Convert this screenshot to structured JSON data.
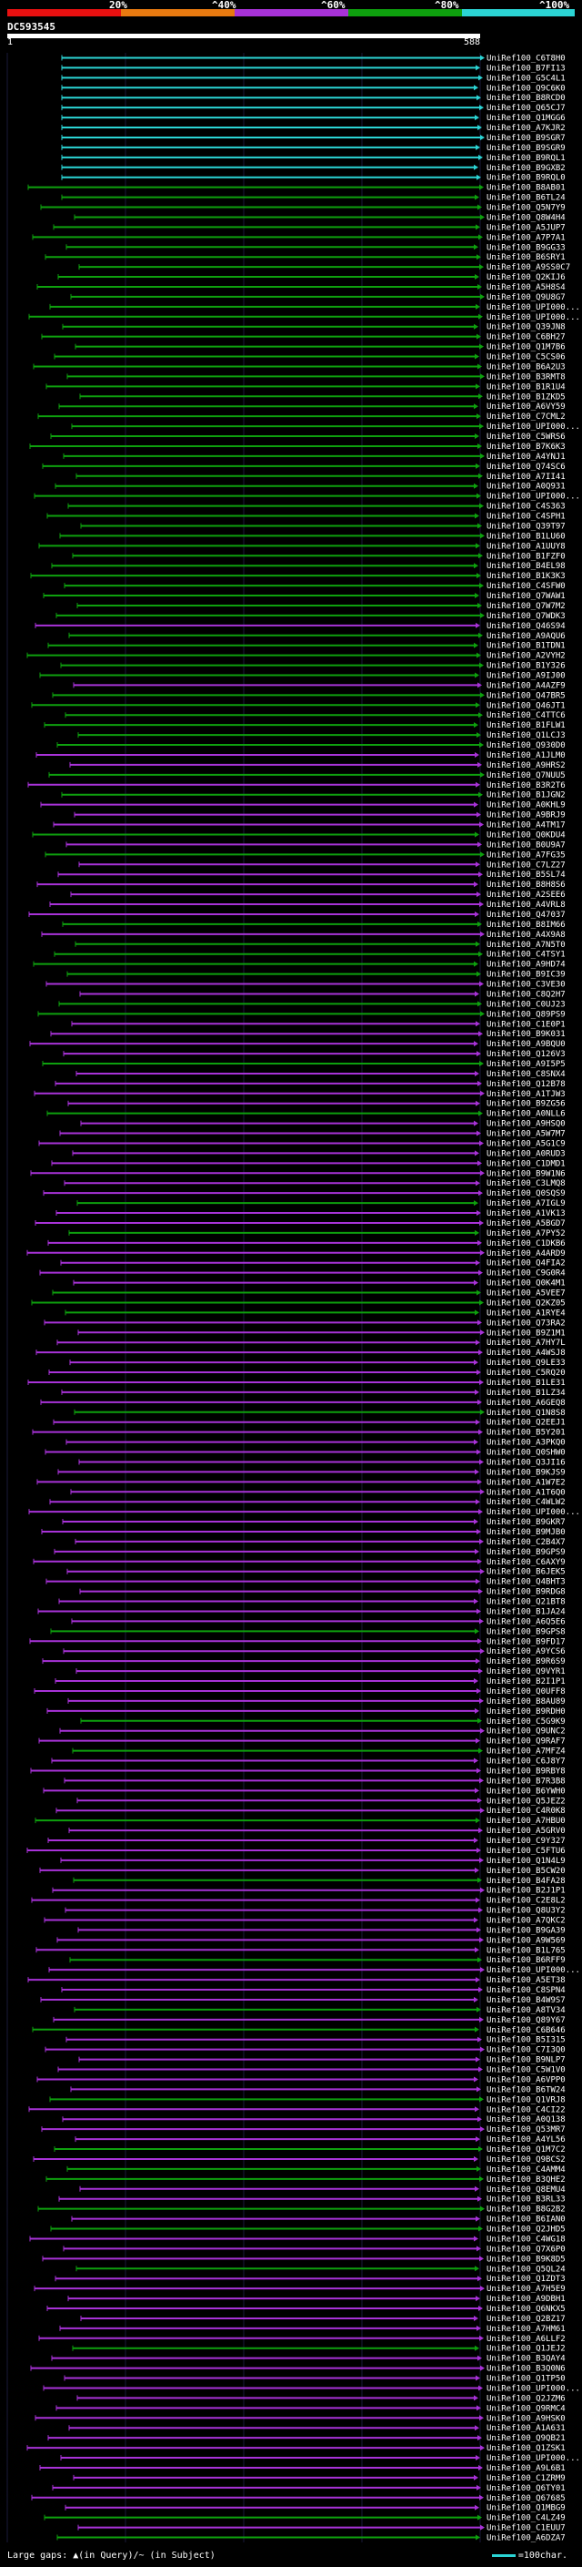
{
  "header": {
    "color_scale": [
      {
        "label": "20%",
        "color": "#e81010"
      },
      {
        "label": "^40%",
        "color": "#e87a10"
      },
      {
        "label": "^60%",
        "color": "#a832d8"
      },
      {
        "label": "^80%",
        "color": "#0ea00e"
      },
      {
        "label": "^100%",
        "color": "#2bd4d4"
      }
    ],
    "query_id": "DC593545",
    "ruler_start": "1",
    "ruler_end": "588"
  },
  "hits": [
    {
      "id": "UniRef100_C6T8H0",
      "pid": 0.99
    },
    {
      "id": "UniRef100_B7FI13",
      "pid": 0.99
    },
    {
      "id": "UniRef100_G5C4L1",
      "pid": 0.99
    },
    {
      "id": "UniRef100_Q9C6K0",
      "pid": 0.99
    },
    {
      "id": "UniRef100_B8RCD0",
      "pid": 0.99
    },
    {
      "id": "UniRef100_Q65CJ7",
      "pid": 0.99
    },
    {
      "id": "UniRef100_Q1MGG6",
      "pid": 0.99
    },
    {
      "id": "UniRef100_A7KJR2",
      "pid": 0.99
    },
    {
      "id": "UniRef100_B9SGR7",
      "pid": 0.99
    },
    {
      "id": "UniRef100_B9SGR9",
      "pid": 0.99
    },
    {
      "id": "UniRef100_B9RQL1",
      "pid": 0.99
    },
    {
      "id": "UniRef100_B9GXB2",
      "pid": 0.99
    },
    {
      "id": "UniRef100_B9RQL0",
      "pid": 0.99
    },
    {
      "id": "UniRef100_B8AB01",
      "pid": 0.9
    },
    {
      "id": "UniRef100_B6TL24",
      "pid": 0.9
    },
    {
      "id": "UniRef100_Q5N7Y9",
      "pid": 0.9
    },
    {
      "id": "UniRef100_Q8W4H4",
      "pid": 0.9
    },
    {
      "id": "UniRef100_A5JUP7",
      "pid": 0.9
    },
    {
      "id": "UniRef100_A7P7A1",
      "pid": 0.9
    },
    {
      "id": "UniRef100_B9GG33",
      "pid": 0.9
    },
    {
      "id": "UniRef100_B6SRY1",
      "pid": 0.9
    },
    {
      "id": "UniRef100_A9SS0C7",
      "pid": 0.9
    },
    {
      "id": "UniRef100_Q2KIJ6",
      "pid": 0.9
    },
    {
      "id": "UniRef100_A5H8S4",
      "pid": 0.9
    },
    {
      "id": "UniRef100_Q9U8G7",
      "pid": 0.9
    },
    {
      "id": "UniRef100_UPI000...",
      "pid": 0.9
    },
    {
      "id": "UniRef100_UPI000...",
      "pid": 0.9
    },
    {
      "id": "UniRef100_Q39JN8",
      "pid": 0.9
    },
    {
      "id": "UniRef100_C6BH27",
      "pid": 0.9
    },
    {
      "id": "UniRef100_Q1M7B6",
      "pid": 0.9
    },
    {
      "id": "UniRef100_C5CS06",
      "pid": 0.9
    },
    {
      "id": "UniRef100_B6A2U3",
      "pid": 0.9
    },
    {
      "id": "UniRef100_B3RMT8",
      "pid": 0.9
    },
    {
      "id": "UniRef100_B1R1U4",
      "pid": 0.9
    },
    {
      "id": "UniRef100_B1ZKD5",
      "pid": 0.9
    },
    {
      "id": "UniRef100_A6VY59",
      "pid": 0.9
    },
    {
      "id": "UniRef100_C7CML2",
      "pid": 0.9
    },
    {
      "id": "UniRef100_UPI000...",
      "pid": 0.9
    },
    {
      "id": "UniRef100_C5WRS6",
      "pid": 0.9
    },
    {
      "id": "UniRef100_B7K6K3",
      "pid": 0.9
    },
    {
      "id": "UniRef100_A4YNJ1",
      "pid": 0.9
    },
    {
      "id": "UniRef100_Q74SC6",
      "pid": 0.9
    },
    {
      "id": "UniRef100_A7II41",
      "pid": 0.9
    },
    {
      "id": "UniRef100_A0Q931",
      "pid": 0.9
    },
    {
      "id": "UniRef100_UPI000...",
      "pid": 0.9
    },
    {
      "id": "UniRef100_C4S363",
      "pid": 0.9
    },
    {
      "id": "UniRef100_C4SPH1",
      "pid": 0.9
    },
    {
      "id": "UniRef100_Q39T97",
      "pid": 0.9
    },
    {
      "id": "UniRef100_B1LU60",
      "pid": 0.9
    },
    {
      "id": "UniRef100_A1UUY8",
      "pid": 0.9
    },
    {
      "id": "UniRef100_B1FZF0",
      "pid": 0.9
    },
    {
      "id": "UniRef100_B4EL98",
      "pid": 0.9
    },
    {
      "id": "UniRef100_B1K3K3",
      "pid": 0.9
    },
    {
      "id": "UniRef100_C4SFW0",
      "pid": 0.9
    },
    {
      "id": "UniRef100_Q7WAW1",
      "pid": 0.9
    },
    {
      "id": "UniRef100_Q7W7M2",
      "pid": 0.9
    },
    {
      "id": "UniRef100_Q7WDK3",
      "pid": 0.9
    },
    {
      "id": "UniRef100_Q46S94",
      "pid": 0.7
    },
    {
      "id": "UniRef100_A9AQU6",
      "pid": 0.9
    },
    {
      "id": "UniRef100_B1TDN1",
      "pid": 0.9
    },
    {
      "id": "UniRef100_A2VYH2",
      "pid": 0.9
    },
    {
      "id": "UniRef100_B1Y326",
      "pid": 0.9
    },
    {
      "id": "UniRef100_A9IJ00",
      "pid": 0.9
    },
    {
      "id": "UniRef100_A4AZF9",
      "pid": 0.7
    },
    {
      "id": "UniRef100_Q47BR5",
      "pid": 0.9
    },
    {
      "id": "UniRef100_Q46JT1",
      "pid": 0.9
    },
    {
      "id": "UniRef100_C4TTC6",
      "pid": 0.9
    },
    {
      "id": "UniRef100_B1FLW1",
      "pid": 0.9
    },
    {
      "id": "UniRef100_Q1LCJ3",
      "pid": 0.9
    },
    {
      "id": "UniRef100_Q930D0",
      "pid": 0.9
    },
    {
      "id": "UniRef100_A1JLM0",
      "pid": 0.7
    },
    {
      "id": "UniRef100_A9HRS2",
      "pid": 0.7
    },
    {
      "id": "UniRef100_Q7NUU5",
      "pid": 0.9
    },
    {
      "id": "UniRef100_B3R2T6",
      "pid": 0.7
    },
    {
      "id": "UniRef100_B1JGN2",
      "pid": 0.9
    },
    {
      "id": "UniRef100_A0KHL9",
      "pid": 0.7
    },
    {
      "id": "UniRef100_A9BRJ9",
      "pid": 0.7
    },
    {
      "id": "UniRef100_A4TM17",
      "pid": 0.7
    },
    {
      "id": "UniRef100_Q0KDU4",
      "pid": 0.9
    },
    {
      "id": "UniRef100_B0U9A7",
      "pid": 0.7
    },
    {
      "id": "UniRef100_A7FG35",
      "pid": 0.9
    },
    {
      "id": "UniRef100_C7LZ27",
      "pid": 0.7
    },
    {
      "id": "UniRef100_B5SL74",
      "pid": 0.7
    },
    {
      "id": "UniRef100_B8H8S6",
      "pid": 0.7
    },
    {
      "id": "UniRef100_A2SEE6",
      "pid": 0.7
    },
    {
      "id": "UniRef100_A4VRL8",
      "pid": 0.7
    },
    {
      "id": "UniRef100_Q47037",
      "pid": 0.7
    },
    {
      "id": "UniRef100_B8IM66",
      "pid": 0.9
    },
    {
      "id": "UniRef100_A4X9A8",
      "pid": 0.7
    },
    {
      "id": "UniRef100_A7N5T0",
      "pid": 0.9
    },
    {
      "id": "UniRef100_C4TSY1",
      "pid": 0.9
    },
    {
      "id": "UniRef100_A9HD74",
      "pid": 0.9
    },
    {
      "id": "UniRef100_B9IC39",
      "pid": 0.9
    },
    {
      "id": "UniRef100_C3VE30",
      "pid": 0.7
    },
    {
      "id": "UniRef100_C8Q2H7",
      "pid": 0.7
    },
    {
      "id": "UniRef100_C0UJ23",
      "pid": 0.9
    },
    {
      "id": "UniRef100_Q89PS9",
      "pid": 0.9
    },
    {
      "id": "UniRef100_C1E0P1",
      "pid": 0.7
    },
    {
      "id": "UniRef100_B9K031",
      "pid": 0.7
    },
    {
      "id": "UniRef100_A9BQU0",
      "pid": 0.7
    },
    {
      "id": "UniRef100_Q126V3",
      "pid": 0.7
    },
    {
      "id": "UniRef100_A9I5P5",
      "pid": 0.9
    },
    {
      "id": "UniRef100_C8SNX4",
      "pid": 0.7
    },
    {
      "id": "UniRef100_Q12B78",
      "pid": 0.7
    },
    {
      "id": "UniRef100_A1TJW3",
      "pid": 0.7
    },
    {
      "id": "UniRef100_B9ZG56",
      "pid": 0.7
    },
    {
      "id": "UniRef100_A0NLL6",
      "pid": 0.9
    },
    {
      "id": "UniRef100_A9HSQ0",
      "pid": 0.7
    },
    {
      "id": "UniRef100_A5W7M7",
      "pid": 0.7
    },
    {
      "id": "UniRef100_A5G1C9",
      "pid": 0.7
    },
    {
      "id": "UniRef100_A0RUD3",
      "pid": 0.7
    },
    {
      "id": "UniRef100_C1DMD1",
      "pid": 0.7
    },
    {
      "id": "UniRef100_B9W1N6",
      "pid": 0.7
    },
    {
      "id": "UniRef100_C3LMQ8",
      "pid": 0.7
    },
    {
      "id": "UniRef100_Q0SQS9",
      "pid": 0.7
    },
    {
      "id": "UniRef100_A7IGL9",
      "pid": 0.9
    },
    {
      "id": "UniRef100_A1VK13",
      "pid": 0.7
    },
    {
      "id": "UniRef100_A5BGD7",
      "pid": 0.7
    },
    {
      "id": "UniRef100_A7PY52",
      "pid": 0.9
    },
    {
      "id": "UniRef100_C1DKB6",
      "pid": 0.7
    },
    {
      "id": "UniRef100_A4ARD9",
      "pid": 0.7
    },
    {
      "id": "UniRef100_Q4FIA2",
      "pid": 0.7
    },
    {
      "id": "UniRef100_C9G0R4",
      "pid": 0.7
    },
    {
      "id": "UniRef100_Q0K4M1",
      "pid": 0.7
    },
    {
      "id": "UniRef100_A5VEE7",
      "pid": 0.9
    },
    {
      "id": "UniRef100_Q2KZ05",
      "pid": 0.9
    },
    {
      "id": "UniRef100_A1RYE4",
      "pid": 0.9
    },
    {
      "id": "UniRef100_Q73RA2",
      "pid": 0.7
    },
    {
      "id": "UniRef100_B9Z1M1",
      "pid": 0.7
    },
    {
      "id": "UniRef100_A7HY7L",
      "pid": 0.7
    },
    {
      "id": "UniRef100_A4WSJ8",
      "pid": 0.7
    },
    {
      "id": "UniRef100_Q9LE33",
      "pid": 0.7
    },
    {
      "id": "UniRef100_C5RQ20",
      "pid": 0.7
    },
    {
      "id": "UniRef100_B1LE31",
      "pid": 0.7
    },
    {
      "id": "UniRef100_B1LZ34",
      "pid": 0.7
    },
    {
      "id": "UniRef100_A6GEQ8",
      "pid": 0.7
    },
    {
      "id": "UniRef100_Q1N8S8",
      "pid": 0.9
    },
    {
      "id": "UniRef100_Q2EEJ1",
      "pid": 0.7
    },
    {
      "id": "UniRef100_B5Y201",
      "pid": 0.7
    },
    {
      "id": "UniRef100_A3PKQ0",
      "pid": 0.7
    },
    {
      "id": "UniRef100_Q0SHW0",
      "pid": 0.7
    },
    {
      "id": "UniRef100_Q3JI16",
      "pid": 0.7
    },
    {
      "id": "UniRef100_B9KJS9",
      "pid": 0.7
    },
    {
      "id": "UniRef100_A1W7E2",
      "pid": 0.7
    },
    {
      "id": "UniRef100_A1T6Q0",
      "pid": 0.7
    },
    {
      "id": "UniRef100_C4WLW2",
      "pid": 0.7
    },
    {
      "id": "UniRef100_UPI000...",
      "pid": 0.7
    },
    {
      "id": "UniRef100_B9GKR7",
      "pid": 0.7
    },
    {
      "id": "UniRef100_B9MJB0",
      "pid": 0.7
    },
    {
      "id": "UniRef100_C2B4X7",
      "pid": 0.7
    },
    {
      "id": "UniRef100_B9GPS9",
      "pid": 0.7
    },
    {
      "id": "UniRef100_C6AXY9",
      "pid": 0.7
    },
    {
      "id": "UniRef100_B6JEK5",
      "pid": 0.7
    },
    {
      "id": "UniRef100_Q4BHT3",
      "pid": 0.7
    },
    {
      "id": "UniRef100_B9RDG8",
      "pid": 0.7
    },
    {
      "id": "UniRef100_Q21BT8",
      "pid": 0.7
    },
    {
      "id": "UniRef100_B1JA24",
      "pid": 0.7
    },
    {
      "id": "UniRef100_A6Q5E6",
      "pid": 0.7
    },
    {
      "id": "UniRef100_B9GPS8",
      "pid": 0.9
    },
    {
      "id": "UniRef100_B9FD17",
      "pid": 0.7
    },
    {
      "id": "UniRef100_A9YCS6",
      "pid": 0.7
    },
    {
      "id": "UniRef100_B9R6S9",
      "pid": 0.7
    },
    {
      "id": "UniRef100_Q9VYR1",
      "pid": 0.7
    },
    {
      "id": "UniRef100_B2I1P1",
      "pid": 0.7
    },
    {
      "id": "UniRef100_Q0UFF8",
      "pid": 0.7
    },
    {
      "id": "UniRef100_B8AU89",
      "pid": 0.7
    },
    {
      "id": "UniRef100_B9RDH0",
      "pid": 0.7
    },
    {
      "id": "UniRef100_C5G9K9",
      "pid": 0.9
    },
    {
      "id": "UniRef100_Q9UNC2",
      "pid": 0.7
    },
    {
      "id": "UniRef100_Q9RAF7",
      "pid": 0.7
    },
    {
      "id": "UniRef100_A7MFZ4",
      "pid": 0.9
    },
    {
      "id": "UniRef100_C6J8Y7",
      "pid": 0.7
    },
    {
      "id": "UniRef100_B9RBY8",
      "pid": 0.7
    },
    {
      "id": "UniRef100_B7R3B8",
      "pid": 0.7
    },
    {
      "id": "UniRef100_B6YWH0",
      "pid": 0.7
    },
    {
      "id": "UniRef100_Q5JEZ2",
      "pid": 0.7
    },
    {
      "id": "UniRef100_C4R0K8",
      "pid": 0.7
    },
    {
      "id": "UniRef100_A7HBU0",
      "pid": 0.9
    },
    {
      "id": "UniRef100_A5GRV0",
      "pid": 0.7
    },
    {
      "id": "UniRef100_C9Y327",
      "pid": 0.7
    },
    {
      "id": "UniRef100_C5FTU6",
      "pid": 0.7
    },
    {
      "id": "UniRef100_Q1N4L9",
      "pid": 0.7
    },
    {
      "id": "UniRef100_B5CW20",
      "pid": 0.7
    },
    {
      "id": "UniRef100_B4FA28",
      "pid": 0.9
    },
    {
      "id": "UniRef100_B2J1P1",
      "pid": 0.7
    },
    {
      "id": "UniRef100_C2E8L2",
      "pid": 0.7
    },
    {
      "id": "UniRef100_Q8U3Y2",
      "pid": 0.7
    },
    {
      "id": "UniRef100_A7QKC2",
      "pid": 0.7
    },
    {
      "id": "UniRef100_B9GA39",
      "pid": 0.7
    },
    {
      "id": "UniRef100_A9W569",
      "pid": 0.7
    },
    {
      "id": "UniRef100_B1L765",
      "pid": 0.7
    },
    {
      "id": "UniRef100_B6RFF9",
      "pid": 0.9
    },
    {
      "id": "UniRef100_UPI000...",
      "pid": 0.7
    },
    {
      "id": "UniRef100_A5ET38",
      "pid": 0.7
    },
    {
      "id": "UniRef100_C8SPN4",
      "pid": 0.7
    },
    {
      "id": "UniRef100_B4W9S7",
      "pid": 0.7
    },
    {
      "id": "UniRef100_A8TV34",
      "pid": 0.9
    },
    {
      "id": "UniRef100_Q89Y67",
      "pid": 0.7
    },
    {
      "id": "UniRef100_C6B646",
      "pid": 0.9
    },
    {
      "id": "UniRef100_B5I315",
      "pid": 0.7
    },
    {
      "id": "UniRef100_C7I3Q0",
      "pid": 0.7
    },
    {
      "id": "UniRef100_B9NLP7",
      "pid": 0.7
    },
    {
      "id": "UniRef100_C5W1V0",
      "pid": 0.7
    },
    {
      "id": "UniRef100_A6VPP0",
      "pid": 0.7
    },
    {
      "id": "UniRef100_B6TW24",
      "pid": 0.7
    },
    {
      "id": "UniRef100_Q1VRJ8",
      "pid": 0.9
    },
    {
      "id": "UniRef100_C4CI22",
      "pid": 0.7
    },
    {
      "id": "UniRef100_A0Q138",
      "pid": 0.7
    },
    {
      "id": "UniRef100_Q53MR7",
      "pid": 0.7
    },
    {
      "id": "UniRef100_A4YL56",
      "pid": 0.7
    },
    {
      "id": "UniRef100_Q1M7C2",
      "pid": 0.9
    },
    {
      "id": "UniRef100_Q9BCS2",
      "pid": 0.7
    },
    {
      "id": "UniRef100_C4AMM4",
      "pid": 0.9
    },
    {
      "id": "UniRef100_B3QHE2",
      "pid": 0.9
    },
    {
      "id": "UniRef100_Q8EMU4",
      "pid": 0.7
    },
    {
      "id": "UniRef100_B3RL33",
      "pid": 0.7
    },
    {
      "id": "UniRef100_B8G2B2",
      "pid": 0.9
    },
    {
      "id": "UniRef100_B6IAN0",
      "pid": 0.7
    },
    {
      "id": "UniRef100_Q2JHD5",
      "pid": 0.9
    },
    {
      "id": "UniRef100_C4WG18",
      "pid": 0.7
    },
    {
      "id": "UniRef100_Q7X6P0",
      "pid": 0.7
    },
    {
      "id": "UniRef100_B9K8D5",
      "pid": 0.7
    },
    {
      "id": "UniRef100_Q5QL24",
      "pid": 0.9
    },
    {
      "id": "UniRef100_Q1ZDT3",
      "pid": 0.7
    },
    {
      "id": "UniRef100_A7H5E9",
      "pid": 0.7
    },
    {
      "id": "UniRef100_A9DBH1",
      "pid": 0.7
    },
    {
      "id": "UniRef100_Q6NKX5",
      "pid": 0.7
    },
    {
      "id": "UniRef100_Q2BZ17",
      "pid": 0.7
    },
    {
      "id": "UniRef100_A7HM61",
      "pid": 0.7
    },
    {
      "id": "UniRef100_A6LLF2",
      "pid": 0.7
    },
    {
      "id": "UniRef100_Q1JEJ2",
      "pid": 0.9
    },
    {
      "id": "UniRef100_B3QAY4",
      "pid": 0.7
    },
    {
      "id": "UniRef100_B3Q0N6",
      "pid": 0.7
    },
    {
      "id": "UniRef100_Q1TP50",
      "pid": 0.7
    },
    {
      "id": "UniRef100_UPI000...",
      "pid": 0.7
    },
    {
      "id": "UniRef100_Q2JZM6",
      "pid": 0.7
    },
    {
      "id": "UniRef100_Q9RMC4",
      "pid": 0.7
    },
    {
      "id": "UniRef100_A9HSK0",
      "pid": 0.7
    },
    {
      "id": "UniRef100_A1A631",
      "pid": 0.7
    },
    {
      "id": "UniRef100_Q9QB21",
      "pid": 0.7
    },
    {
      "id": "UniRef100_Q1ZSK1",
      "pid": 0.7
    },
    {
      "id": "UniRef100_UPI000...",
      "pid": 0.7
    },
    {
      "id": "UniRef100_A9L6B1",
      "pid": 0.7
    },
    {
      "id": "UniRef100_C1ZRM9",
      "pid": 0.7
    },
    {
      "id": "UniRef100_Q6TY01",
      "pid": 0.7
    },
    {
      "id": "UniRef100_Q67685",
      "pid": 0.7
    },
    {
      "id": "UniRef100_Q1MBG9",
      "pid": 0.7
    },
    {
      "id": "UniRef100_C4LZ49",
      "pid": 0.9
    },
    {
      "id": "UniRef100_C1EUU7",
      "pid": 0.7
    },
    {
      "id": "UniRef100_A6DZA7",
      "pid": 0.9
    }
  ],
  "footer": {
    "gaps_text": "Large gaps: ▲(in Query)/~ (in Subject)",
    "scale_text": "=100char."
  }
}
